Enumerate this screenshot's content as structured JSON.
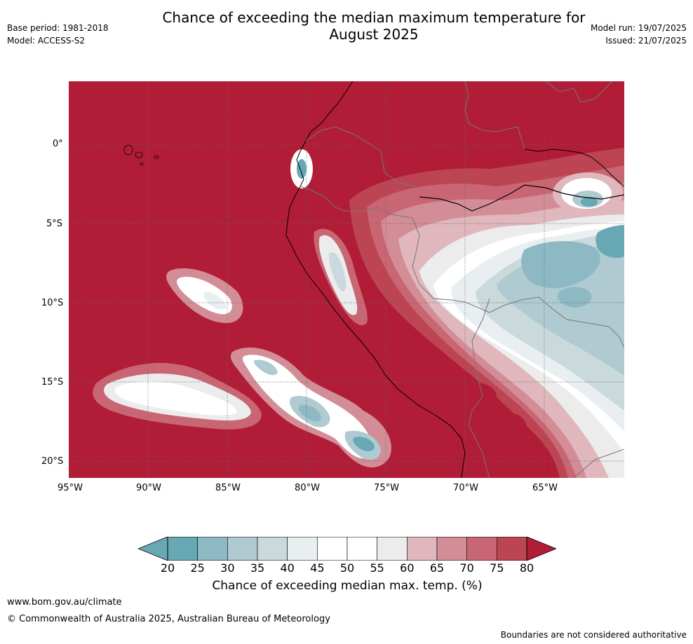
{
  "header": {
    "title_line1": "Chance of exceeding the median maximum temperature for",
    "title_line2": "August 2025",
    "base_period": "Base period: 1981-2018",
    "model": "Model: ACCESS-S2",
    "model_run": "Model run: 19/07/2025",
    "issued": "Issued: 21/07/2025"
  },
  "map": {
    "lat_labels": [
      "0°",
      "5°S",
      "10°S",
      "15°S",
      "20°S"
    ],
    "lon_labels": [
      "95°W",
      "90°W",
      "85°W",
      "80°W",
      "75°W",
      "70°W",
      "65°W"
    ],
    "palette": {
      "c20": "#68a8b5",
      "c25": "#8db9c4",
      "c30": "#afcad0",
      "c35": "#c9d9dc",
      "c40": "#e9eff1",
      "c45": "#ffffff",
      "c50": "#ffffff",
      "c55": "#ececec",
      "c60": "#dfb7bc",
      "c65": "#d38d96",
      "c70": "#c96673",
      "c75": "#bd4553",
      "c80": "#b11c37"
    }
  },
  "colorbar": {
    "ticks": [
      "20",
      "25",
      "30",
      "35",
      "40",
      "45",
      "50",
      "55",
      "60",
      "65",
      "70",
      "75",
      "80"
    ],
    "label": "Chance of exceeding median max. temp. (%)",
    "colors": [
      "#68a8b5",
      "#8db9c4",
      "#afcad0",
      "#c9d9dc",
      "#e9eff1",
      "#ffffff",
      "#ffffff",
      "#ececec",
      "#dfb7bc",
      "#d38d96",
      "#c96673",
      "#bd4553"
    ],
    "low_color": "#68a8b5",
    "high_color": "#b11c37"
  },
  "footer": {
    "url": "www.bom.gov.au/climate",
    "copyright": "© Commonwealth of Australia 2025, Australian Bureau of Meteorology",
    "disclaimer": "Boundaries are not considered authoritative"
  }
}
